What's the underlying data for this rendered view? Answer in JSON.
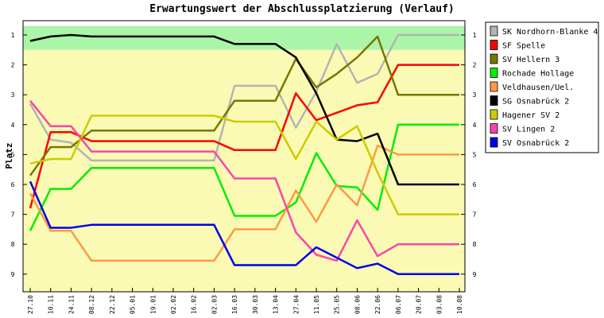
{
  "chart_data": {
    "type": "line",
    "title": "Erwartungswert der Abschlussplatzierung (Verlauf)",
    "ylabel": "Platz",
    "xlabel": "",
    "ylim": [
      0.7,
      9.6
    ],
    "y_inverted": true,
    "yticks": [
      1,
      2,
      3,
      4,
      5,
      6,
      7,
      8,
      9
    ],
    "legend_position": "right",
    "zones": [
      {
        "from": 0.7,
        "to": 1.5,
        "color": "#aaf5aa"
      },
      {
        "from": 1.5,
        "to": 9.6,
        "color": "#fafab4"
      }
    ],
    "categories": [
      "27.10",
      "10.11",
      "24.11",
      "08.12",
      "22.12",
      "05.01",
      "19.01",
      "02.02",
      "16.02",
      "02.03",
      "16.03",
      "30.03",
      "13.04",
      "27.04",
      "11.05",
      "25.05",
      "08.06",
      "22.06",
      "06.07",
      "20.07",
      "03.08",
      "10.08"
    ],
    "series": [
      {
        "name": "SK Nordhorn-Blanke 4",
        "color": "#b4b4b4",
        "values": [
          3.3,
          4.5,
          4.6,
          5.2,
          5.2,
          5.2,
          5.2,
          5.2,
          5.2,
          5.2,
          2.7,
          2.7,
          2.7,
          4.1,
          2.9,
          1.3,
          2.6,
          2.3,
          1.0,
          1.0,
          1.0,
          1.0
        ]
      },
      {
        "name": "SF Spelle",
        "color": "#ff0000",
        "values": [
          6.8,
          4.25,
          4.25,
          4.55,
          4.55,
          4.55,
          4.55,
          4.55,
          4.55,
          4.55,
          4.85,
          4.85,
          4.85,
          2.95,
          3.85,
          3.6,
          3.35,
          3.25,
          2.0,
          2.0,
          2.0,
          2.0
        ]
      },
      {
        "name": "SV Hellern 3",
        "color": "#777700",
        "values": [
          5.7,
          4.75,
          4.75,
          4.2,
          4.2,
          4.2,
          4.2,
          4.2,
          4.2,
          4.2,
          3.2,
          3.2,
          3.2,
          1.8,
          2.75,
          2.3,
          1.75,
          1.05,
          3.0,
          3.0,
          3.0,
          3.0
        ]
      },
      {
        "name": "Rochade Hollage",
        "color": "#00ee00",
        "values": [
          7.55,
          6.15,
          6.15,
          5.45,
          5.45,
          5.45,
          5.45,
          5.45,
          5.45,
          5.45,
          7.05,
          7.05,
          7.05,
          6.6,
          4.95,
          6.05,
          6.1,
          6.85,
          4.0,
          4.0,
          4.0,
          4.0
        ]
      },
      {
        "name": "Veldhausen/Uel.",
        "color": "#ff9944",
        "values": [
          6.3,
          7.55,
          7.55,
          8.55,
          8.55,
          8.55,
          8.55,
          8.55,
          8.55,
          8.55,
          7.5,
          7.5,
          7.5,
          6.2,
          7.25,
          6.0,
          6.7,
          4.7,
          5.0,
          5.0,
          5.0,
          5.0
        ]
      },
      {
        "name": "SG Osnabrück 2",
        "color": "#000000",
        "values": [
          1.2,
          1.05,
          1.0,
          1.05,
          1.05,
          1.05,
          1.05,
          1.05,
          1.05,
          1.05,
          1.3,
          1.3,
          1.3,
          1.75,
          2.95,
          4.5,
          4.55,
          4.3,
          6.0,
          6.0,
          6.0,
          6.0
        ]
      },
      {
        "name": "Hagener SV 2",
        "color": "#cccc00",
        "values": [
          5.3,
          5.15,
          5.15,
          3.7,
          3.7,
          3.7,
          3.7,
          3.7,
          3.7,
          3.7,
          3.9,
          3.9,
          3.9,
          5.15,
          3.9,
          4.5,
          4.05,
          5.6,
          7.0,
          7.0,
          7.0,
          7.0
        ]
      },
      {
        "name": "SV Lingen 2",
        "color": "#ff44aa",
        "values": [
          3.2,
          4.05,
          4.05,
          4.9,
          4.9,
          4.9,
          4.9,
          4.9,
          4.9,
          4.9,
          5.8,
          5.8,
          5.8,
          7.6,
          8.35,
          8.55,
          7.2,
          8.4,
          8.0,
          8.0,
          8.0,
          8.0
        ]
      },
      {
        "name": "SV Osnabrück 2",
        "color": "#0000ee",
        "values": [
          5.9,
          7.45,
          7.45,
          7.35,
          7.35,
          7.35,
          7.35,
          7.35,
          7.35,
          7.35,
          8.7,
          8.7,
          8.7,
          8.7,
          8.1,
          8.45,
          8.8,
          8.65,
          9.0,
          9.0,
          9.0,
          9.0
        ]
      }
    ]
  }
}
